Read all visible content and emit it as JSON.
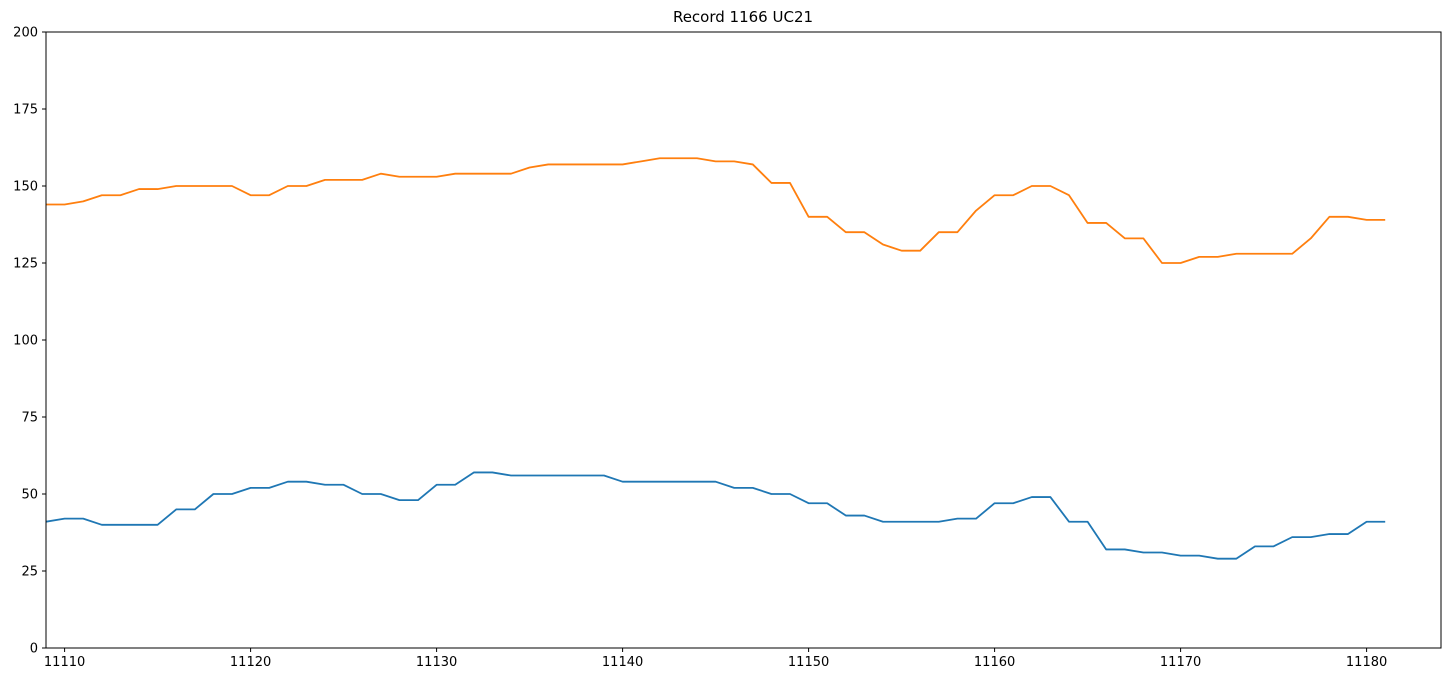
{
  "chart_data": {
    "type": "line",
    "title": "Record 1166 UC21",
    "xlabel": "",
    "ylabel": "",
    "xlim": [
      11109,
      11184
    ],
    "ylim": [
      0,
      200
    ],
    "xticks": [
      11110,
      11120,
      11130,
      11140,
      11150,
      11160,
      11170,
      11180
    ],
    "yticks": [
      0,
      25,
      50,
      75,
      100,
      125,
      150,
      175,
      200
    ],
    "grid": false,
    "legend": "none",
    "colors": {
      "blue": "#1f77b4",
      "orange": "#ff7f0e"
    },
    "x": [
      11109,
      11110,
      11111,
      11112,
      11113,
      11114,
      11115,
      11116,
      11117,
      11118,
      11119,
      11120,
      11121,
      11122,
      11123,
      11124,
      11125,
      11126,
      11127,
      11128,
      11129,
      11130,
      11131,
      11132,
      11133,
      11134,
      11135,
      11136,
      11137,
      11138,
      11139,
      11140,
      11141,
      11142,
      11143,
      11144,
      11145,
      11146,
      11147,
      11148,
      11149,
      11150,
      11151,
      11152,
      11153,
      11154,
      11155,
      11156,
      11157,
      11158,
      11159,
      11160,
      11161,
      11162,
      11163,
      11164,
      11165,
      11166,
      11167,
      11168,
      11169,
      11170,
      11171,
      11172,
      11173,
      11174,
      11175,
      11176,
      11177,
      11178,
      11179,
      11180,
      11181
    ],
    "series": [
      {
        "color": "#1f77b4",
        "values": [
          41,
          42,
          42,
          40,
          40,
          40,
          40,
          45,
          45,
          50,
          50,
          52,
          52,
          54,
          54,
          53,
          53,
          50,
          50,
          48,
          48,
          53,
          53,
          57,
          57,
          56,
          56,
          56,
          56,
          56,
          56,
          54,
          54,
          54,
          54,
          54,
          54,
          52,
          52,
          50,
          50,
          47,
          47,
          43,
          43,
          41,
          41,
          41,
          41,
          42,
          42,
          47,
          47,
          49,
          49,
          41,
          41,
          32,
          32,
          31,
          31,
          30,
          30,
          29,
          29,
          33,
          33,
          36,
          36,
          37,
          37,
          41,
          41
        ]
      },
      {
        "color": "#ff7f0e",
        "values": [
          144,
          144,
          145,
          147,
          147,
          149,
          149,
          150,
          150,
          150,
          150,
          147,
          147,
          150,
          150,
          152,
          152,
          152,
          154,
          153,
          153,
          153,
          154,
          154,
          154,
          154,
          156,
          157,
          157,
          157,
          157,
          157,
          158,
          159,
          159,
          159,
          158,
          158,
          157,
          151,
          151,
          140,
          140,
          135,
          135,
          131,
          129,
          129,
          135,
          135,
          142,
          147,
          147,
          150,
          150,
          147,
          138,
          138,
          133,
          133,
          125,
          125,
          127,
          127,
          128,
          128,
          128,
          128,
          133,
          140,
          140,
          139,
          139
        ]
      }
    ]
  }
}
